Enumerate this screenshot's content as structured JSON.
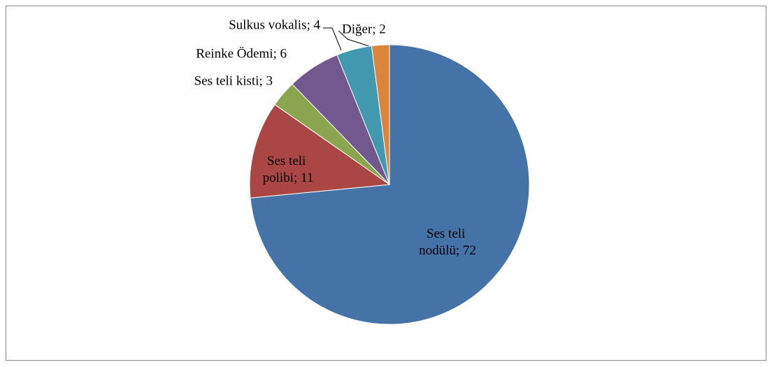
{
  "chart_data": {
    "type": "pie",
    "values": [
      72,
      11,
      3,
      6,
      4,
      2
    ],
    "value_labels": [
      "Ses teli nodülü; 72",
      "Ses teli polibi; 11",
      "Ses teli kisti; 3",
      "Reinke Ödemi; 6",
      "Sulkus vokalis; 4",
      "Diğer; 2"
    ],
    "colors": [
      "#4572a7",
      "#aa4643",
      "#89a54e",
      "#71588f",
      "#4198af",
      "#db843d"
    ],
    "start_angle": 0,
    "direction": "clockwise"
  }
}
